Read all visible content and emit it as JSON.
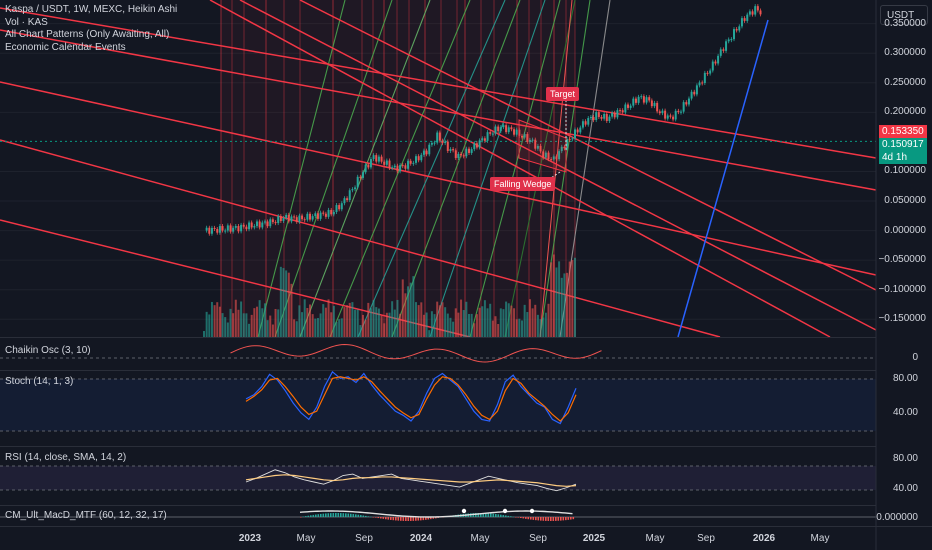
{
  "legend": {
    "title": "Kaspa / USDT, 1W, MEXC, Heikin Ashi",
    "lines": [
      "Vol · KAS",
      "All Chart Patterns (Only Awaiting, All)",
      "Economic Calendar Events"
    ]
  },
  "currency_button": "USDT",
  "price_badges": {
    "last": "0.153350",
    "current": "0.150917",
    "countdown": "4d 1h"
  },
  "pattern_labels": {
    "target": "Target",
    "wedge": "Falling Wedge"
  },
  "panes": {
    "chaikin": "Chaikin Osc (3, 10)",
    "stoch": "Stoch (14, 1, 3)",
    "rsi": "RSI (14, close, SMA, 14, 2)",
    "macd": "CM_Ult_MacD_MTF (60, 12, 32, 17)"
  },
  "colors": {
    "background": "#131722",
    "bull": "#26a69a",
    "bear": "#ef5350",
    "trend_red": "#f23645",
    "fib_green": "#4caf50",
    "trend_blue": "#2962ff",
    "stoch_k": "#2962ff",
    "stoch_d": "#ff6d00",
    "rsi": "#e0e0e0",
    "rsi_ma": "#ffcc80"
  },
  "chart_data": {
    "type": "candlestick",
    "series_name": "Kaspa / USDT",
    "x_ticks": [
      {
        "label": "2023",
        "bold": true
      },
      {
        "label": "May",
        "bold": false
      },
      {
        "label": "Sep",
        "bold": false
      },
      {
        "label": "2024",
        "bold": true
      },
      {
        "label": "May",
        "bold": false
      },
      {
        "label": "Sep",
        "bold": false
      },
      {
        "label": "2025",
        "bold": true
      },
      {
        "label": "May",
        "bold": false
      },
      {
        "label": "Sep",
        "bold": false
      },
      {
        "label": "2026",
        "bold": true
      },
      {
        "label": "May",
        "bold": false
      }
    ],
    "y_ticks": [
      "0.350000",
      "0.300000",
      "0.250000",
      "0.200000",
      "0.100000",
      "0.050000",
      "0.000000",
      "−0.050000",
      "−0.100000",
      "−0.150000"
    ],
    "y_tick_values": [
      0.35,
      0.3,
      0.25,
      0.2,
      0.1,
      0.05,
      0.0,
      -0.05,
      -0.1,
      -0.15
    ],
    "ylim": [
      -0.18,
      0.39
    ],
    "last_price": 0.15335,
    "current_price": 0.150917,
    "price_path": [
      [
        0,
        0.0
      ],
      [
        12,
        0.004
      ],
      [
        20,
        0.01
      ],
      [
        26,
        0.015
      ],
      [
        30,
        0.022
      ],
      [
        36,
        0.02
      ],
      [
        42,
        0.025
      ],
      [
        48,
        0.03
      ],
      [
        52,
        0.045
      ],
      [
        56,
        0.07
      ],
      [
        60,
        0.1
      ],
      [
        64,
        0.125
      ],
      [
        68,
        0.115
      ],
      [
        72,
        0.105
      ],
      [
        76,
        0.11
      ],
      [
        80,
        0.12
      ],
      [
        84,
        0.135
      ],
      [
        88,
        0.16
      ],
      [
        92,
        0.14
      ],
      [
        96,
        0.125
      ],
      [
        100,
        0.135
      ],
      [
        104,
        0.15
      ],
      [
        108,
        0.165
      ],
      [
        112,
        0.175
      ],
      [
        116,
        0.17
      ],
      [
        120,
        0.16
      ],
      [
        124,
        0.15
      ],
      [
        128,
        0.128
      ],
      [
        132,
        0.12
      ],
      [
        136,
        0.145
      ],
      [
        140,
        0.165
      ],
      [
        144,
        0.185
      ],
      [
        148,
        0.195
      ],
      [
        152,
        0.19
      ],
      [
        156,
        0.2
      ],
      [
        160,
        0.21
      ],
      [
        164,
        0.225
      ],
      [
        168,
        0.22
      ],
      [
        172,
        0.2
      ],
      [
        176,
        0.19
      ],
      [
        180,
        0.205
      ],
      [
        184,
        0.23
      ],
      [
        188,
        0.255
      ],
      [
        192,
        0.28
      ],
      [
        196,
        0.31
      ],
      [
        200,
        0.335
      ],
      [
        204,
        0.36
      ],
      [
        208,
        0.375
      ],
      [
        210,
        0.37
      ]
    ],
    "projection_start_index": 136,
    "oscillator_ticks": {
      "chaikin": [
        "0"
      ],
      "stoch": [
        "80.00",
        "40.00"
      ],
      "rsi": [
        "80.00",
        "40.00"
      ],
      "macd": [
        "0.000000"
      ]
    },
    "stoch_k": [
      55,
      60,
      70,
      85,
      78,
      65,
      50,
      38,
      30,
      45,
      70,
      88,
      80,
      82,
      75,
      86,
      72,
      60,
      50,
      40,
      35,
      28,
      40,
      62,
      80,
      86,
      78,
      70,
      55,
      40,
      30,
      28,
      48,
      76,
      84,
      70,
      60,
      50,
      45,
      30,
      25,
      45,
      68
    ],
    "stoch_d": [
      52,
      58,
      66,
      78,
      80,
      70,
      58,
      45,
      36,
      40,
      60,
      80,
      82,
      80,
      78,
      82,
      76,
      65,
      55,
      45,
      38,
      32,
      36,
      55,
      72,
      82,
      80,
      72,
      60,
      46,
      35,
      30,
      40,
      65,
      80,
      74,
      62,
      54,
      46,
      36,
      28,
      38,
      60
    ],
    "rsi": [
      55,
      60,
      66,
      72,
      68,
      62,
      58,
      55,
      52,
      57,
      64,
      66,
      60,
      62,
      64,
      66,
      60,
      58,
      56,
      54,
      52,
      50,
      48,
      53,
      58,
      63,
      60,
      57,
      54,
      52,
      50,
      46,
      43,
      47,
      52
    ],
    "rsi_ma": [
      58,
      60,
      62,
      64,
      65,
      64,
      62,
      60,
      58,
      57,
      58,
      60,
      61,
      61,
      62,
      62,
      61,
      60,
      59,
      58,
      57,
      56,
      55,
      55,
      56,
      57,
      58,
      57,
      56,
      55,
      54,
      52,
      50,
      49,
      50
    ]
  }
}
